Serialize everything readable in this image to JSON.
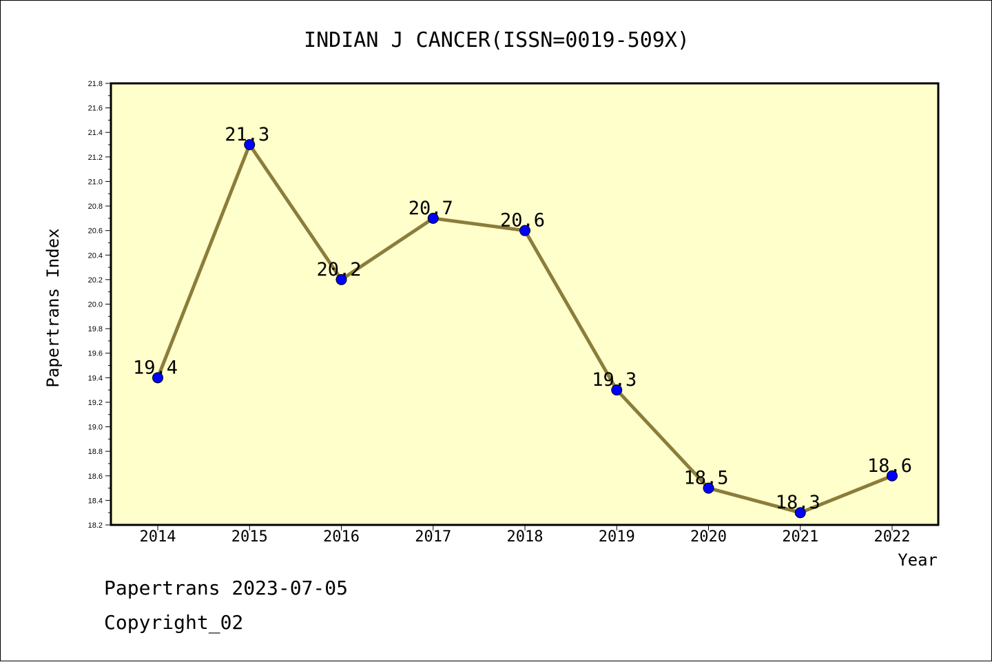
{
  "colors": {
    "background": "#ffffff",
    "plot_background": "#ffffcc",
    "line": "#8b7d3a",
    "marker": "#0000ff",
    "axis": "#000000"
  },
  "chart_data": {
    "type": "line",
    "title": "INDIAN J CANCER(ISSN=0019-509X)",
    "xlabel": "Year",
    "ylabel": "Papertrans Index",
    "categories": [
      "2014",
      "2015",
      "2016",
      "2017",
      "2018",
      "2019",
      "2020",
      "2021",
      "2022"
    ],
    "series": [
      {
        "values": [
          19.4,
          21.3,
          20.2,
          20.7,
          20.6,
          19.3,
          18.5,
          18.3,
          18.6
        ],
        "labels": [
          "19.4",
          "21.3",
          "20.2",
          "20.7",
          "20.6",
          "19.3",
          "18.5",
          "18.3",
          "18.6"
        ]
      }
    ],
    "ylim": [
      18.2,
      21.8
    ],
    "yticks": [
      "18.2",
      "18.4",
      "18.6",
      "18.8",
      "19.0",
      "19.2",
      "19.4",
      "19.6",
      "19.8",
      "20.0",
      "20.2",
      "20.4",
      "20.6",
      "20.8",
      "21.0",
      "21.2",
      "21.4",
      "21.6",
      "21.8"
    ],
    "grid": false,
    "legend": "none"
  },
  "footer": {
    "line1": "Papertrans 2023-07-05",
    "line2": "Copyright_02"
  }
}
